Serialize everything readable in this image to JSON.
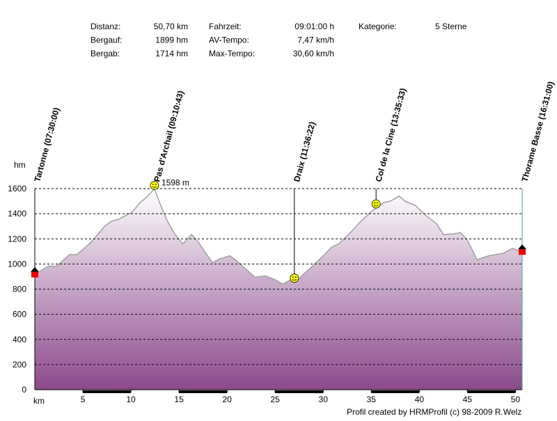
{
  "chart_data": {
    "type": "area",
    "stats": [
      [
        "Distanz:",
        "50,70 km"
      ],
      [
        "Bergauf:",
        "1899 hm"
      ],
      [
        "Bergab:",
        "1714 hm"
      ],
      [
        "Fahrzeit:",
        "09:01:00 h"
      ],
      [
        "AV-Tempo:",
        "7,47 km/h"
      ],
      [
        "Max-Tempo:",
        "30,60 km/h"
      ],
      [
        "Kategorie:",
        "5 Sterne"
      ]
    ],
    "y_label": "hm",
    "x_label": "km",
    "x": [
      0,
      0.7,
      1.45,
      2.2,
      2.9,
      3.6,
      4.35,
      5.07,
      5.8,
      6.5,
      7.25,
      7.98,
      8.7,
      9.43,
      10.15,
      10.9,
      11.6,
      12.45,
      13.1,
      13.8,
      14.5,
      15.4,
      16.3,
      17.0,
      17.7,
      18.5,
      19.2,
      20.3,
      21.0,
      21.8,
      22.9,
      24.0,
      25.0,
      25.8,
      26.5,
      27.2,
      27.9,
      28.7,
      29.8,
      30.9,
      31.6,
      32.7,
      33.8,
      34.9,
      35.6,
      36.3,
      37.0,
      37.9,
      38.5,
      39.6,
      40.7,
      41.8,
      42.5,
      43.6,
      44.3,
      45.0,
      46.0,
      47.2,
      48.7,
      49.7,
      50.7
    ],
    "values": [
      915,
      950,
      985,
      980,
      1025,
      1075,
      1075,
      1120,
      1170,
      1230,
      1300,
      1340,
      1355,
      1385,
      1415,
      1485,
      1530,
      1598,
      1465,
      1340,
      1245,
      1160,
      1235,
      1175,
      1095,
      1010,
      1040,
      1065,
      1025,
      970,
      895,
      905,
      875,
      840,
      870,
      860,
      915,
      970,
      1050,
      1135,
      1160,
      1240,
      1330,
      1410,
      1450,
      1490,
      1500,
      1540,
      1500,
      1465,
      1385,
      1320,
      1235,
      1240,
      1250,
      1190,
      1035,
      1065,
      1085,
      1125,
      1095
    ],
    "color": "#8b4a8b",
    "line_color": "#a0a0a0",
    "xlim": [
      0,
      50.7
    ],
    "ylim": [
      0,
      1600
    ],
    "xticks": [
      5,
      10,
      15,
      20,
      25,
      30,
      35,
      40,
      45,
      50
    ],
    "yticks": [
      0,
      200,
      400,
      600,
      800,
      1000,
      1200,
      1400,
      1600
    ],
    "grid": true,
    "waypoints": [
      {
        "label": "Tartonne (07:30:00)",
        "km": 0,
        "elev": 915,
        "marker": "house"
      },
      {
        "label": "Pas d'Archail (09:10:43)",
        "km": 12.45,
        "elev": 1598,
        "marker": "smiley"
      },
      {
        "label": "Draix (11:36:22)",
        "km": 27.0,
        "elev": 860,
        "marker": "smiley"
      },
      {
        "label": "Col de la Cine (13:35:33)",
        "km": 35.5,
        "elev": 1450,
        "marker": "smiley"
      },
      {
        "label": "Thorame Basse (16:31:00)",
        "km": 50.7,
        "elev": 1095,
        "marker": "house"
      }
    ],
    "peak_label": "1598 m",
    "footer": "Profil created by HRMProfil (c) 98-2009 R.Welz"
  }
}
